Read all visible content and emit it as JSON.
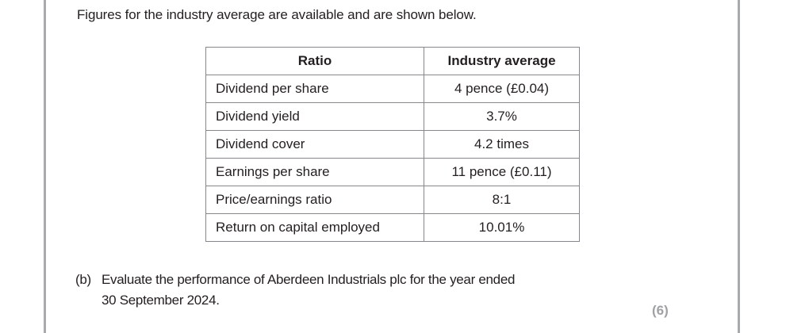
{
  "page": {
    "intro_text": "Figures for the industry average are available and are shown below.",
    "marks": "(6)"
  },
  "question": {
    "label": "(b)",
    "line1": "Evaluate the performance of Aberdeen Industrials plc for the year ended",
    "line2": "30 September 2024."
  },
  "table": {
    "headers": [
      "Ratio",
      "Industry average"
    ],
    "rows": [
      {
        "ratio": "Dividend per share",
        "value": "4 pence (£0.04)"
      },
      {
        "ratio": "Dividend yield",
        "value": "3.7%"
      },
      {
        "ratio": "Dividend cover",
        "value": "4.2 times"
      },
      {
        "ratio": "Earnings per share",
        "value": "11 pence (£0.11)"
      },
      {
        "ratio": "Price/earnings ratio",
        "value": "8:1"
      },
      {
        "ratio": "Return on capital employed",
        "value": "10.01%"
      }
    ]
  },
  "colors": {
    "text": "#231f20",
    "table_border": "#85878a",
    "edge_rule": "#a8aaad",
    "marks": "#9fa1a4"
  }
}
